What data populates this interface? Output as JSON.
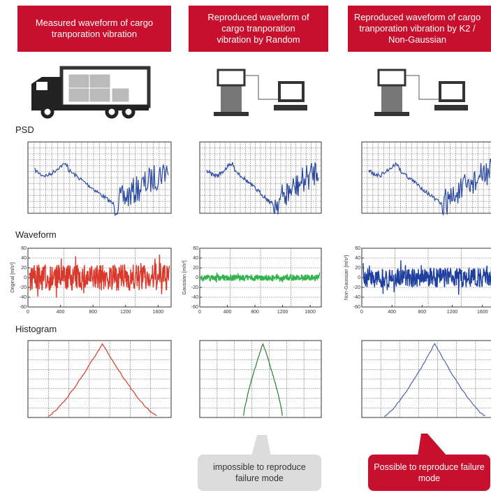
{
  "columns": [
    {
      "title": "Measured waveform of cargo tranporation vibration",
      "waveform_ylabel": "Original [m/s²]"
    },
    {
      "title": "Reproduced waveform of cargo tranporation vibration by Random",
      "waveform_ylabel": "Gaussian [m/s²]"
    },
    {
      "title": "Reproduced waveform of cargo tranporation vibration by K2 / Non-Gaussian",
      "waveform_ylabel": "Non-Gaussian [m/s²]"
    }
  ],
  "sections": {
    "psd": "PSD",
    "waveform": "Waveform",
    "histogram": "Histogram"
  },
  "waveform_axes": {
    "yticks": [
      60,
      40,
      20,
      0,
      -20,
      -40,
      -60
    ],
    "xticks": [
      0,
      400,
      800,
      1200,
      1600
    ]
  },
  "callouts": {
    "random": "impossible to reproduce failure mode",
    "k2": "Possible to reproduce failure mode"
  }
}
